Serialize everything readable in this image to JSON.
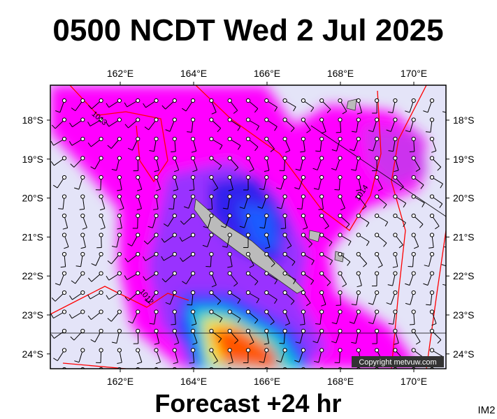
{
  "header": {
    "title": "0500 NCDT Wed 2 Jul 2025"
  },
  "map": {
    "lon_labels": [
      "162°E",
      "164°E",
      "166°E",
      "168°E",
      "170°E"
    ],
    "lat_labels": [
      "18°S",
      "19°S",
      "20°S",
      "21°S",
      "22°S",
      "23°S",
      "24°S"
    ],
    "isobar_labels": [
      "1013",
      "1014",
      "1012"
    ],
    "copyright": "Copyright metvuw.com"
  },
  "footer": {
    "forecast": "Forecast +24 hr",
    "id": "IM2"
  }
}
